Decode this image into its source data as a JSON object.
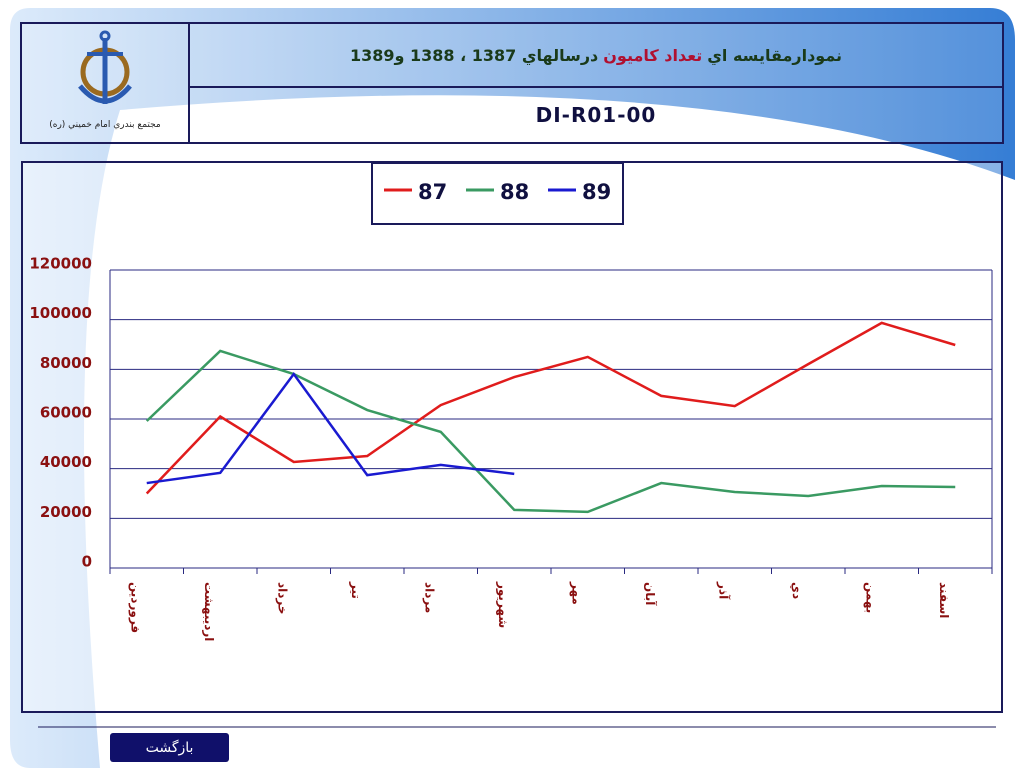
{
  "header": {
    "title_parts": [
      "نمودارمقايسه اي",
      "تعداد كاميون",
      "درسالهاي 1387 ، 1388 و1389"
    ],
    "code": "DI-R01-00",
    "logo_caption": "مجتمع بندري امام خميني (ره)"
  },
  "chart_data": {
    "type": "line",
    "categories": [
      "فروردين",
      "ارديبهشت",
      "خرداد",
      "تير",
      "مرداد",
      "شهريور",
      "مهر",
      "آبان",
      "آذر",
      "دي",
      "بهمن",
      "اسفند"
    ],
    "series": [
      {
        "name": "87",
        "color": "#e01c1c",
        "values": [
          30000,
          61000,
          42700,
          45100,
          65600,
          76900,
          85000,
          69300,
          65200,
          82100,
          98700,
          89800
        ]
      },
      {
        "name": "88",
        "color": "#3a9a62",
        "values": [
          59200,
          87400,
          78100,
          63600,
          54800,
          23400,
          22600,
          34200,
          30600,
          29000,
          33000,
          32600
        ]
      },
      {
        "name": "89",
        "color": "#1a1ad0",
        "values": [
          34200,
          38300,
          78100,
          37400,
          41500,
          37900,
          null,
          null,
          null,
          null,
          null,
          null
        ]
      }
    ],
    "ylim": [
      0,
      120000
    ],
    "yticks": [
      0,
      20000,
      40000,
      60000,
      80000,
      100000,
      120000
    ],
    "grid": true,
    "legend": "top"
  },
  "nav": {
    "back": "بازگشت"
  }
}
